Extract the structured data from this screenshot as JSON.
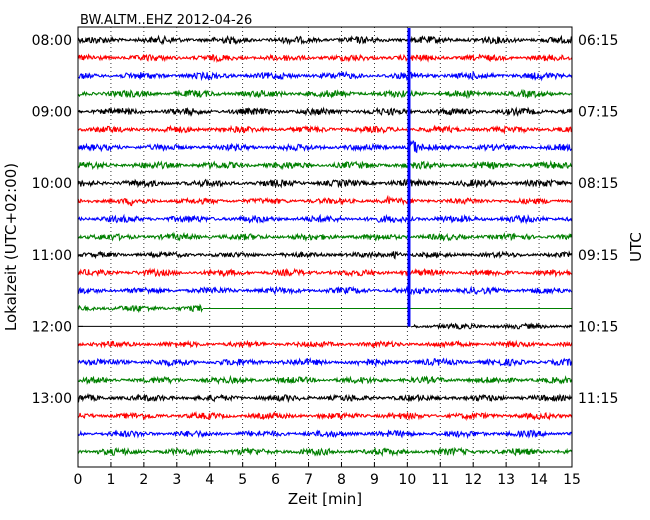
{
  "chart_data": {
    "type": "line",
    "title": "BW.ALTM..EHZ 2012-04-26",
    "xlabel": "Zeit  [min]",
    "ylabel_left": "Lokalzeit (UTC+02:00)",
    "ylabel_right": "UTC",
    "xlim": [
      0,
      15
    ],
    "x_ticks": [
      "0",
      "1",
      "2",
      "3",
      "4",
      "5",
      "6",
      "7",
      "8",
      "9",
      "10",
      "11",
      "12",
      "13",
      "14",
      "15"
    ],
    "left_ticks": [
      "08:00",
      "09:00",
      "10:00",
      "11:00",
      "12:00",
      "13:00"
    ],
    "right_ticks": [
      "06:15",
      "07:15",
      "08:15",
      "09:15",
      "10:15",
      "11:15"
    ],
    "grid": "vertical dotted",
    "row_interval_min": 15,
    "series_colors": [
      "#000000",
      "#ff0000",
      "#0000ff",
      "#008000"
    ],
    "traces": [
      {
        "start": "08:00",
        "amplitude": 0.45
      },
      {
        "start": "08:15",
        "amplitude": 0.4
      },
      {
        "start": "08:30",
        "amplitude": 0.45
      },
      {
        "start": "08:45",
        "amplitude": 0.45
      },
      {
        "start": "09:00",
        "amplitude": 0.45
      },
      {
        "start": "09:15",
        "amplitude": 0.4
      },
      {
        "start": "09:30",
        "amplitude": 0.4
      },
      {
        "start": "09:45",
        "amplitude": 0.45
      },
      {
        "start": "10:00",
        "amplitude": 0.45
      },
      {
        "start": "10:15",
        "amplitude": 0.35
      },
      {
        "start": "10:30",
        "amplitude": 0.45
      },
      {
        "start": "10:45",
        "amplitude": 0.4
      },
      {
        "start": "11:00",
        "amplitude": 0.3
      },
      {
        "start": "11:15",
        "amplitude": 0.4
      },
      {
        "start": "11:30",
        "amplitude": 0.4
      },
      {
        "start": "11:45",
        "amplitude": 0.4,
        "data_end_min": 3.8
      },
      {
        "start": "12:00",
        "amplitude": 0.3,
        "data_start_min": 10.1
      },
      {
        "start": "12:15",
        "amplitude": 0.35
      },
      {
        "start": "12:30",
        "amplitude": 0.45
      },
      {
        "start": "12:45",
        "amplitude": 0.4
      },
      {
        "start": "13:00",
        "amplitude": 0.4
      },
      {
        "start": "13:15",
        "amplitude": 0.4
      },
      {
        "start": "13:30",
        "amplitude": 0.4
      },
      {
        "start": "13:45",
        "amplitude": 0.45
      }
    ],
    "events": [
      {
        "time_local": "10:15",
        "minute": 1.6,
        "peak_amplitude": 0.9,
        "duration_min": 0.7
      },
      {
        "time_local": "10:15",
        "minute": 9.4,
        "peak_amplitude": 0.8,
        "duration_min": 0.8
      },
      {
        "time_local": "09:30",
        "minute": 10.1,
        "peak_amplitude": 1.6,
        "duration_min": 1.0
      },
      {
        "time_local": "11:00",
        "minute": 9.6,
        "peak_amplitude": 0.7,
        "duration_min": 0.8
      },
      {
        "time_local": "12:45",
        "minute": 6.9,
        "peak_amplitude": 0.6,
        "duration_min": 0.5
      }
    ],
    "spike": {
      "minute": 10.05,
      "from": "08:00",
      "to": "12:00"
    }
  }
}
